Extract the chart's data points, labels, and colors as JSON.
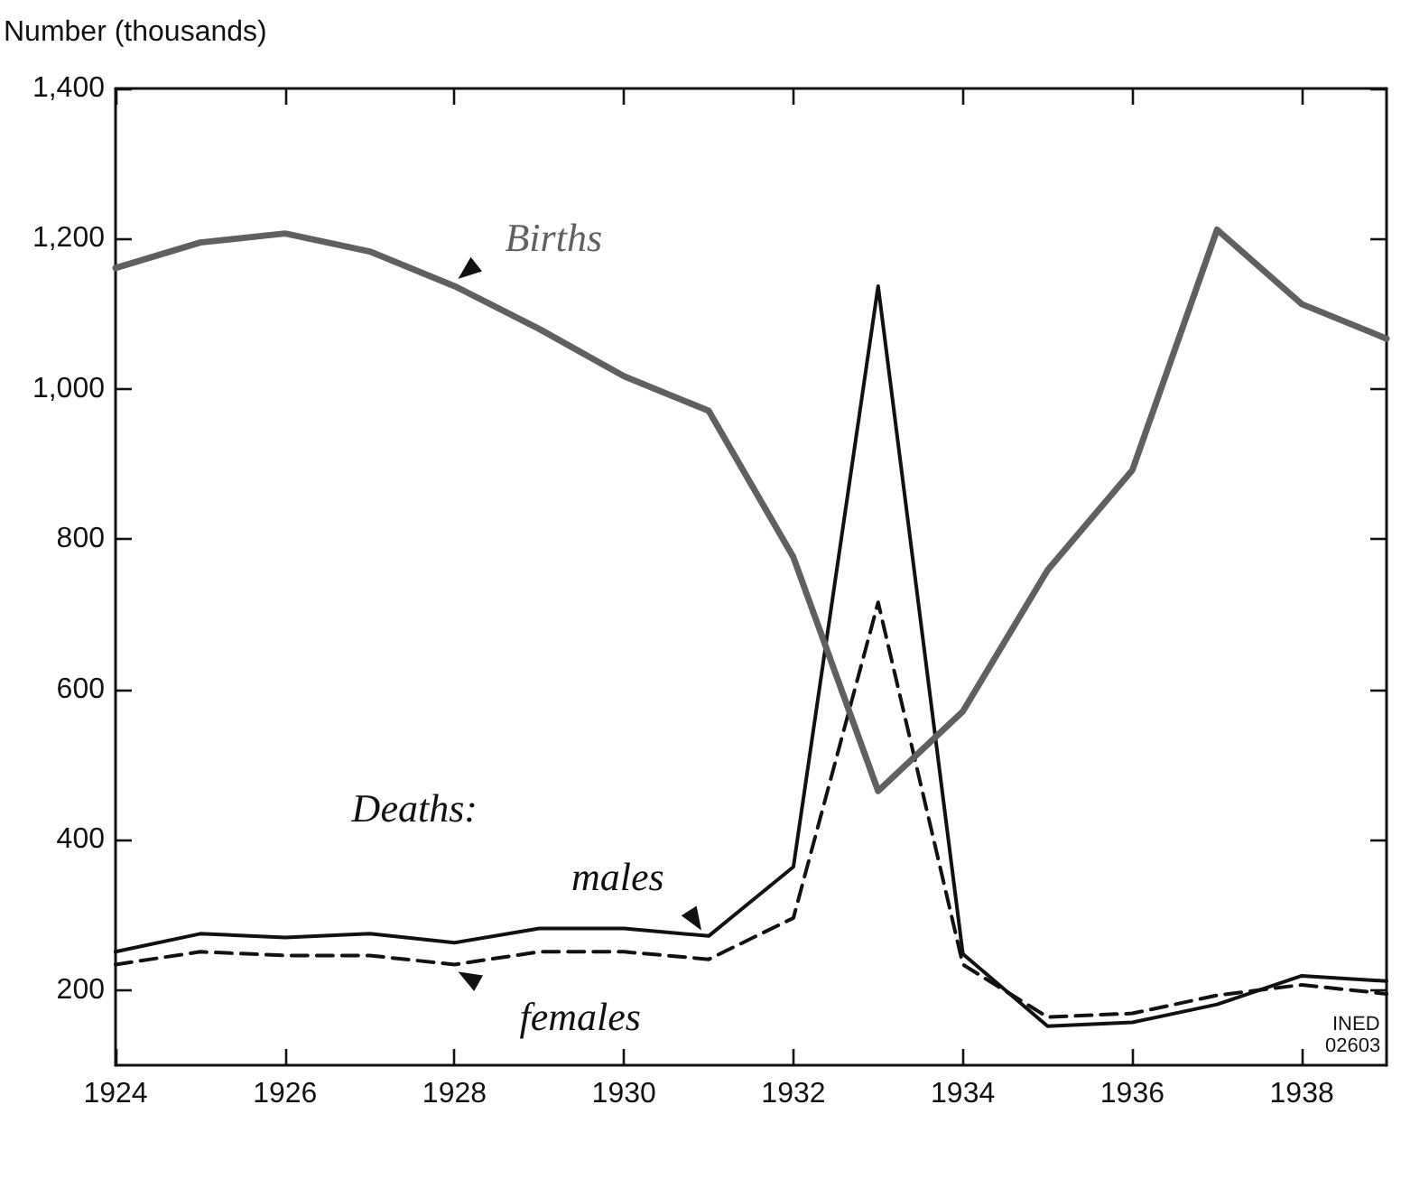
{
  "chart_data": {
    "type": "line",
    "ylabel": "Number (thousands)",
    "annotations": [
      "Deaths:",
      "INED",
      "02603"
    ],
    "x": [
      1924,
      1925,
      1926,
      1927,
      1928,
      1929,
      1930,
      1931,
      1932,
      1933,
      1934,
      1935,
      1936,
      1937,
      1938,
      1939
    ],
    "series": [
      {
        "name": "Births",
        "color": "#606060",
        "line_style": "solid",
        "values": [
          1161,
          1195,
          1207,
          1183,
          1137,
          1080,
          1017,
          971,
          776,
          465,
          571,
          759,
          892,
          1212,
          1113,
          1067
        ]
      },
      {
        "name": "males",
        "color": "#111111",
        "line_style": "solid",
        "values": [
          251,
          275,
          270,
          275,
          263,
          282,
          282,
          272,
          364,
          1137,
          248,
          152,
          157,
          181,
          219,
          212
        ]
      },
      {
        "name": "females",
        "color": "#111111",
        "line_style": "dashed",
        "values": [
          234,
          251,
          246,
          246,
          234,
          251,
          251,
          241,
          296,
          716,
          234,
          164,
          169,
          193,
          207,
          195
        ]
      }
    ],
    "xlim": [
      1924,
      1939
    ],
    "xticks": [
      1924,
      1926,
      1928,
      1930,
      1932,
      1934,
      1936,
      1938
    ],
    "ylim": [
      100,
      1400
    ],
    "yticks": [
      {
        "value": 200,
        "label": "200"
      },
      {
        "value": 400,
        "label": "400"
      },
      {
        "value": 600,
        "label": "600"
      },
      {
        "value": 800,
        "label": "800"
      },
      {
        "value": 1000,
        "label": "1,000"
      },
      {
        "value": 1200,
        "label": "1,200"
      },
      {
        "value": 1400,
        "label": "1,400"
      }
    ],
    "grid": false,
    "legend": false,
    "marker": "none"
  }
}
